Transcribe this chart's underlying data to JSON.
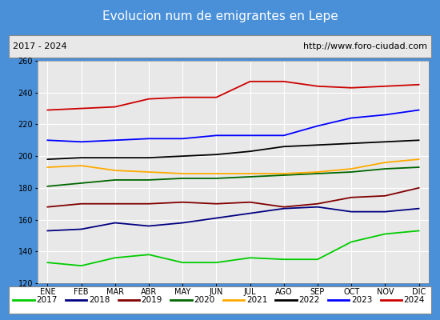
{
  "title": "Evolucion num de emigrantes en Lepe",
  "title_bg": "#4a90d9",
  "subtitle_left": "2017 - 2024",
  "subtitle_right": "http://www.foro-ciudad.com",
  "months": [
    "ENE",
    "FEB",
    "MAR",
    "ABR",
    "MAY",
    "JUN",
    "JUL",
    "AGO",
    "SEP",
    "OCT",
    "NOV",
    "DIC"
  ],
  "ylim": [
    120,
    260
  ],
  "yticks": [
    120,
    140,
    160,
    180,
    200,
    220,
    240,
    260
  ],
  "series": {
    "2017": {
      "color": "#00cc00",
      "data": [
        133,
        131,
        136,
        138,
        133,
        133,
        136,
        135,
        135,
        146,
        151,
        153
      ]
    },
    "2018": {
      "color": "#000080",
      "data": [
        153,
        154,
        158,
        156,
        158,
        161,
        164,
        167,
        168,
        165,
        165,
        167
      ]
    },
    "2019": {
      "color": "#800000",
      "data": [
        168,
        170,
        170,
        170,
        171,
        170,
        171,
        168,
        170,
        174,
        175,
        180
      ]
    },
    "2020": {
      "color": "#006600",
      "data": [
        181,
        183,
        185,
        185,
        186,
        186,
        187,
        188,
        189,
        190,
        192,
        193
      ]
    },
    "2021": {
      "color": "#ffaa00",
      "data": [
        193,
        194,
        191,
        190,
        189,
        189,
        189,
        189,
        190,
        192,
        196,
        198
      ]
    },
    "2022": {
      "color": "#000000",
      "data": [
        198,
        199,
        199,
        199,
        200,
        201,
        203,
        206,
        207,
        208,
        209,
        210
      ]
    },
    "2023": {
      "color": "#0000ff",
      "data": [
        210,
        209,
        210,
        211,
        211,
        213,
        213,
        213,
        219,
        224,
        226,
        229
      ]
    },
    "2024": {
      "color": "#cc0000",
      "data": [
        229,
        230,
        231,
        236,
        237,
        237,
        247,
        247,
        244,
        243,
        244,
        245
      ]
    }
  },
  "legend_order": [
    "2017",
    "2018",
    "2019",
    "2020",
    "2021",
    "2022",
    "2023",
    "2024"
  ],
  "plot_bg": "#e8e8e8"
}
